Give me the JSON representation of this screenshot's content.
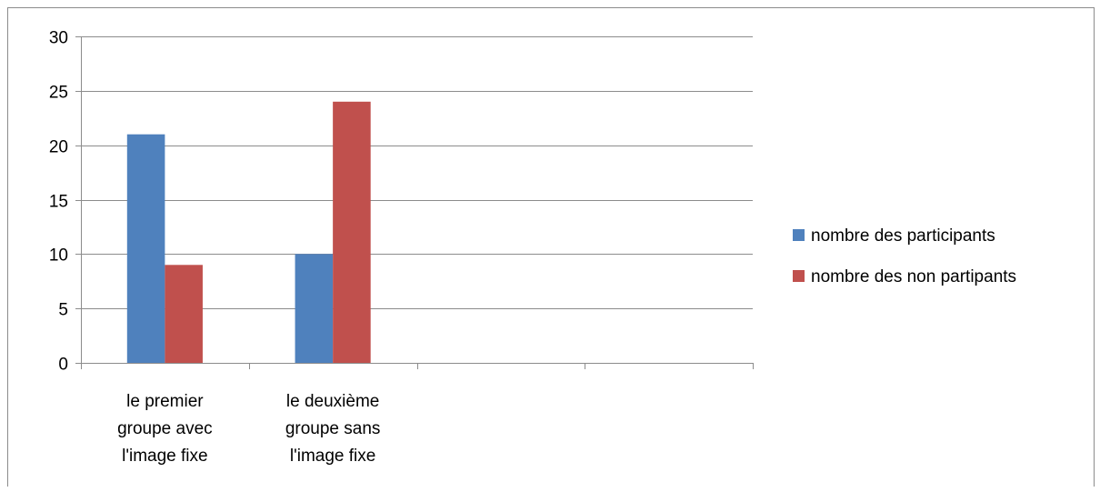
{
  "chart_data": {
    "type": "bar",
    "categories": [
      [
        "le premier",
        "groupe avec",
        "l'image fixe"
      ],
      [
        "le deuxième",
        "groupe sans",
        "l'image fixe"
      ],
      [],
      []
    ],
    "series": [
      {
        "name": "nombre des participants",
        "values": [
          21,
          10,
          null,
          null
        ],
        "color": "#4F81BD"
      },
      {
        "name": "nombre des non partipants",
        "values": [
          9,
          24,
          null,
          null
        ],
        "color": "#C0504D"
      }
    ],
    "ylim": [
      0,
      30
    ],
    "yticks": [
      0,
      5,
      10,
      15,
      20,
      25,
      30
    ],
    "grid": true,
    "legend_position": "right"
  }
}
